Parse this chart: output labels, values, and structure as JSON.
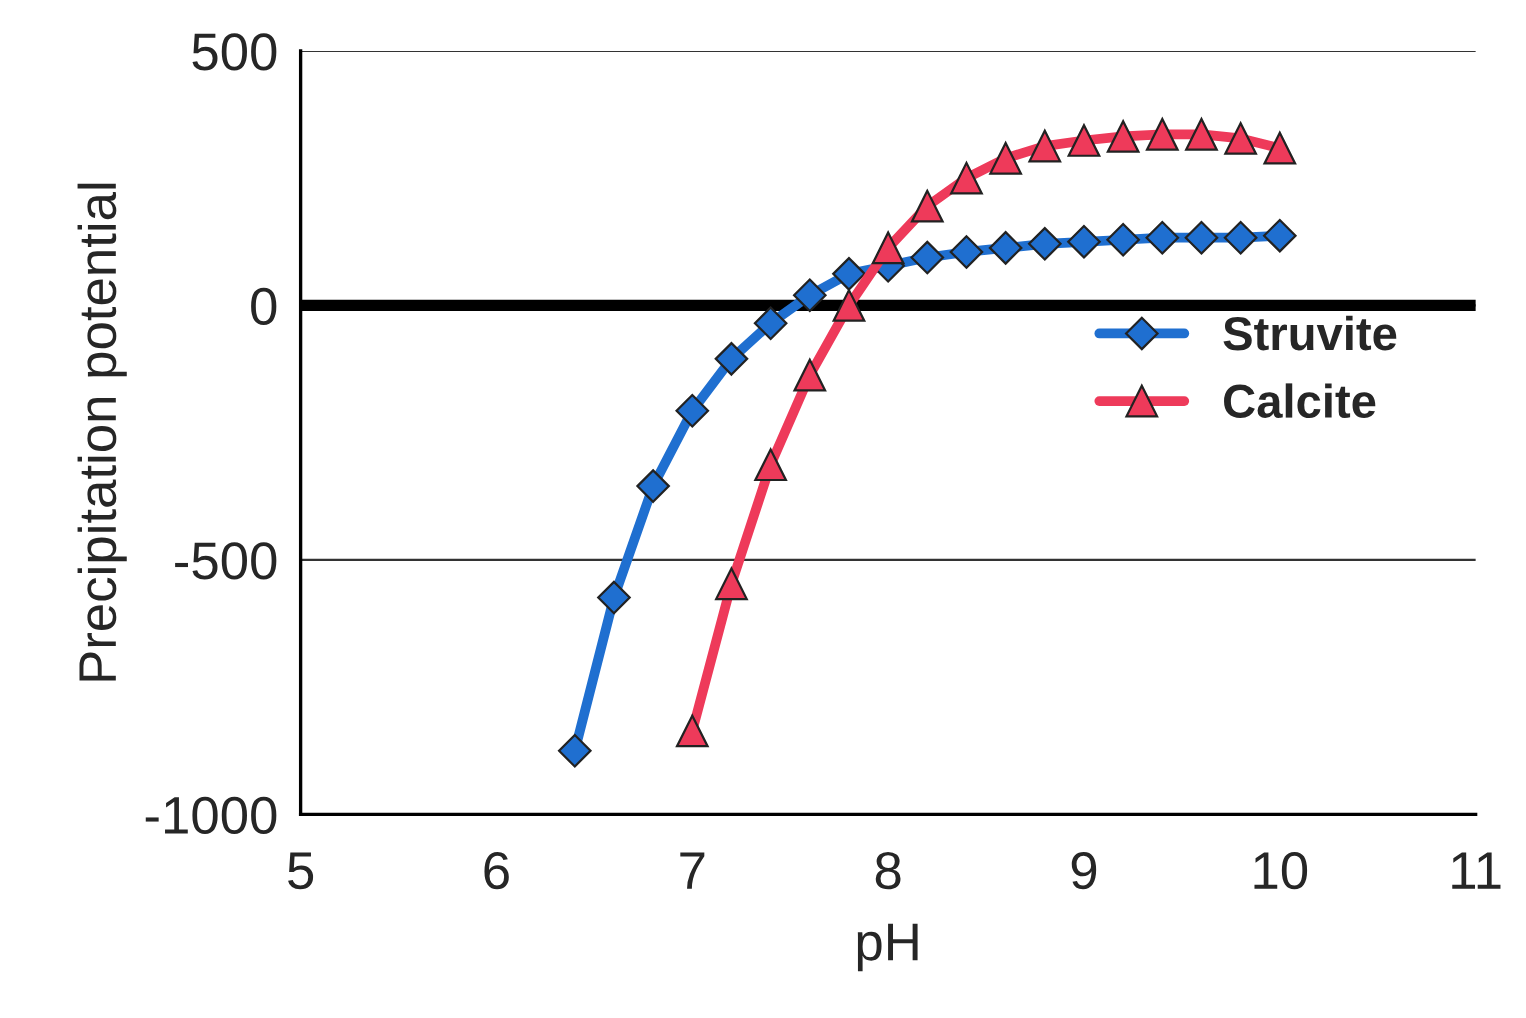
{
  "chart_data": {
    "type": "line",
    "xlabel": "pH",
    "ylabel": "Precipitation potential",
    "xlim": [
      5,
      11
    ],
    "xticks": [
      5,
      6,
      7,
      8,
      9,
      10,
      11
    ],
    "ylim": [
      -1000,
      500
    ],
    "yticks": [
      -1000,
      -500,
      0,
      500
    ],
    "grid": "y",
    "legend": "right",
    "ref_lines": [
      {
        "axis": "y",
        "value": 0,
        "color": "#000000"
      }
    ],
    "series": [
      {
        "name": "Struvite",
        "color": "#1f6fd0",
        "marker": "diamond",
        "x": [
          6.4,
          6.6,
          6.8,
          7.0,
          7.2,
          7.4,
          7.6,
          7.8,
          8.0,
          8.2,
          8.4,
          8.6,
          8.8,
          9.0,
          9.2,
          9.4,
          9.6,
          9.8,
          10.0
        ],
        "values": [
          -875,
          -574,
          -355,
          -207,
          -105,
          -35,
          20,
          62,
          78,
          94,
          105,
          113,
          121,
          125,
          129,
          133,
          133,
          133,
          137
        ]
      },
      {
        "name": "Calcite",
        "color": "#ee3a5a",
        "marker": "triangle",
        "x": [
          7.0,
          7.2,
          7.4,
          7.6,
          7.8,
          8.0,
          8.2,
          8.4,
          8.6,
          8.8,
          9.0,
          9.2,
          9.4,
          9.6,
          9.8,
          10.0
        ],
        "values": [
          -836,
          -547,
          -313,
          -137,
          0,
          113,
          195,
          250,
          289,
          313,
          324,
          332,
          336,
          336,
          328,
          309
        ]
      }
    ]
  }
}
